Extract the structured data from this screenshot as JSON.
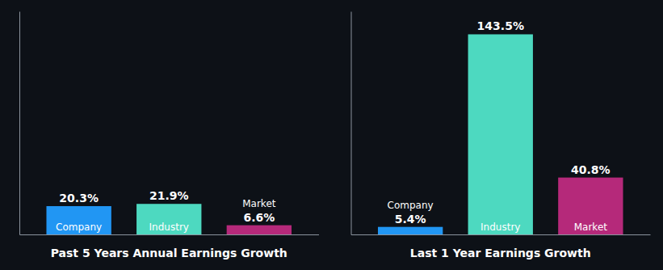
{
  "chart_data": [
    {
      "type": "bar",
      "xlabel": "Past 5 Years Annual Earnings Growth",
      "categories": [
        "Company",
        "Industry",
        "Market"
      ],
      "values": [
        20.3,
        21.9,
        6.6
      ],
      "value_labels": [
        "20.3%",
        "21.9%",
        "6.6%"
      ],
      "colors": [
        "#2196f3",
        "#4dd9c0",
        "#b5297a"
      ],
      "ylim": [
        0,
        160
      ],
      "data_labels": true,
      "tick_labels": false,
      "grid": false
    },
    {
      "type": "bar",
      "xlabel": "Last 1 Year Earnings Growth",
      "categories": [
        "Company",
        "Industry",
        "Market"
      ],
      "values": [
        5.4,
        143.5,
        40.8
      ],
      "value_labels": [
        "5.4%",
        "143.5%",
        "40.8%"
      ],
      "colors": [
        "#2196f3",
        "#4dd9c0",
        "#b5297a"
      ],
      "ylim": [
        0,
        160
      ],
      "data_labels": true,
      "tick_labels": false,
      "grid": false
    }
  ]
}
